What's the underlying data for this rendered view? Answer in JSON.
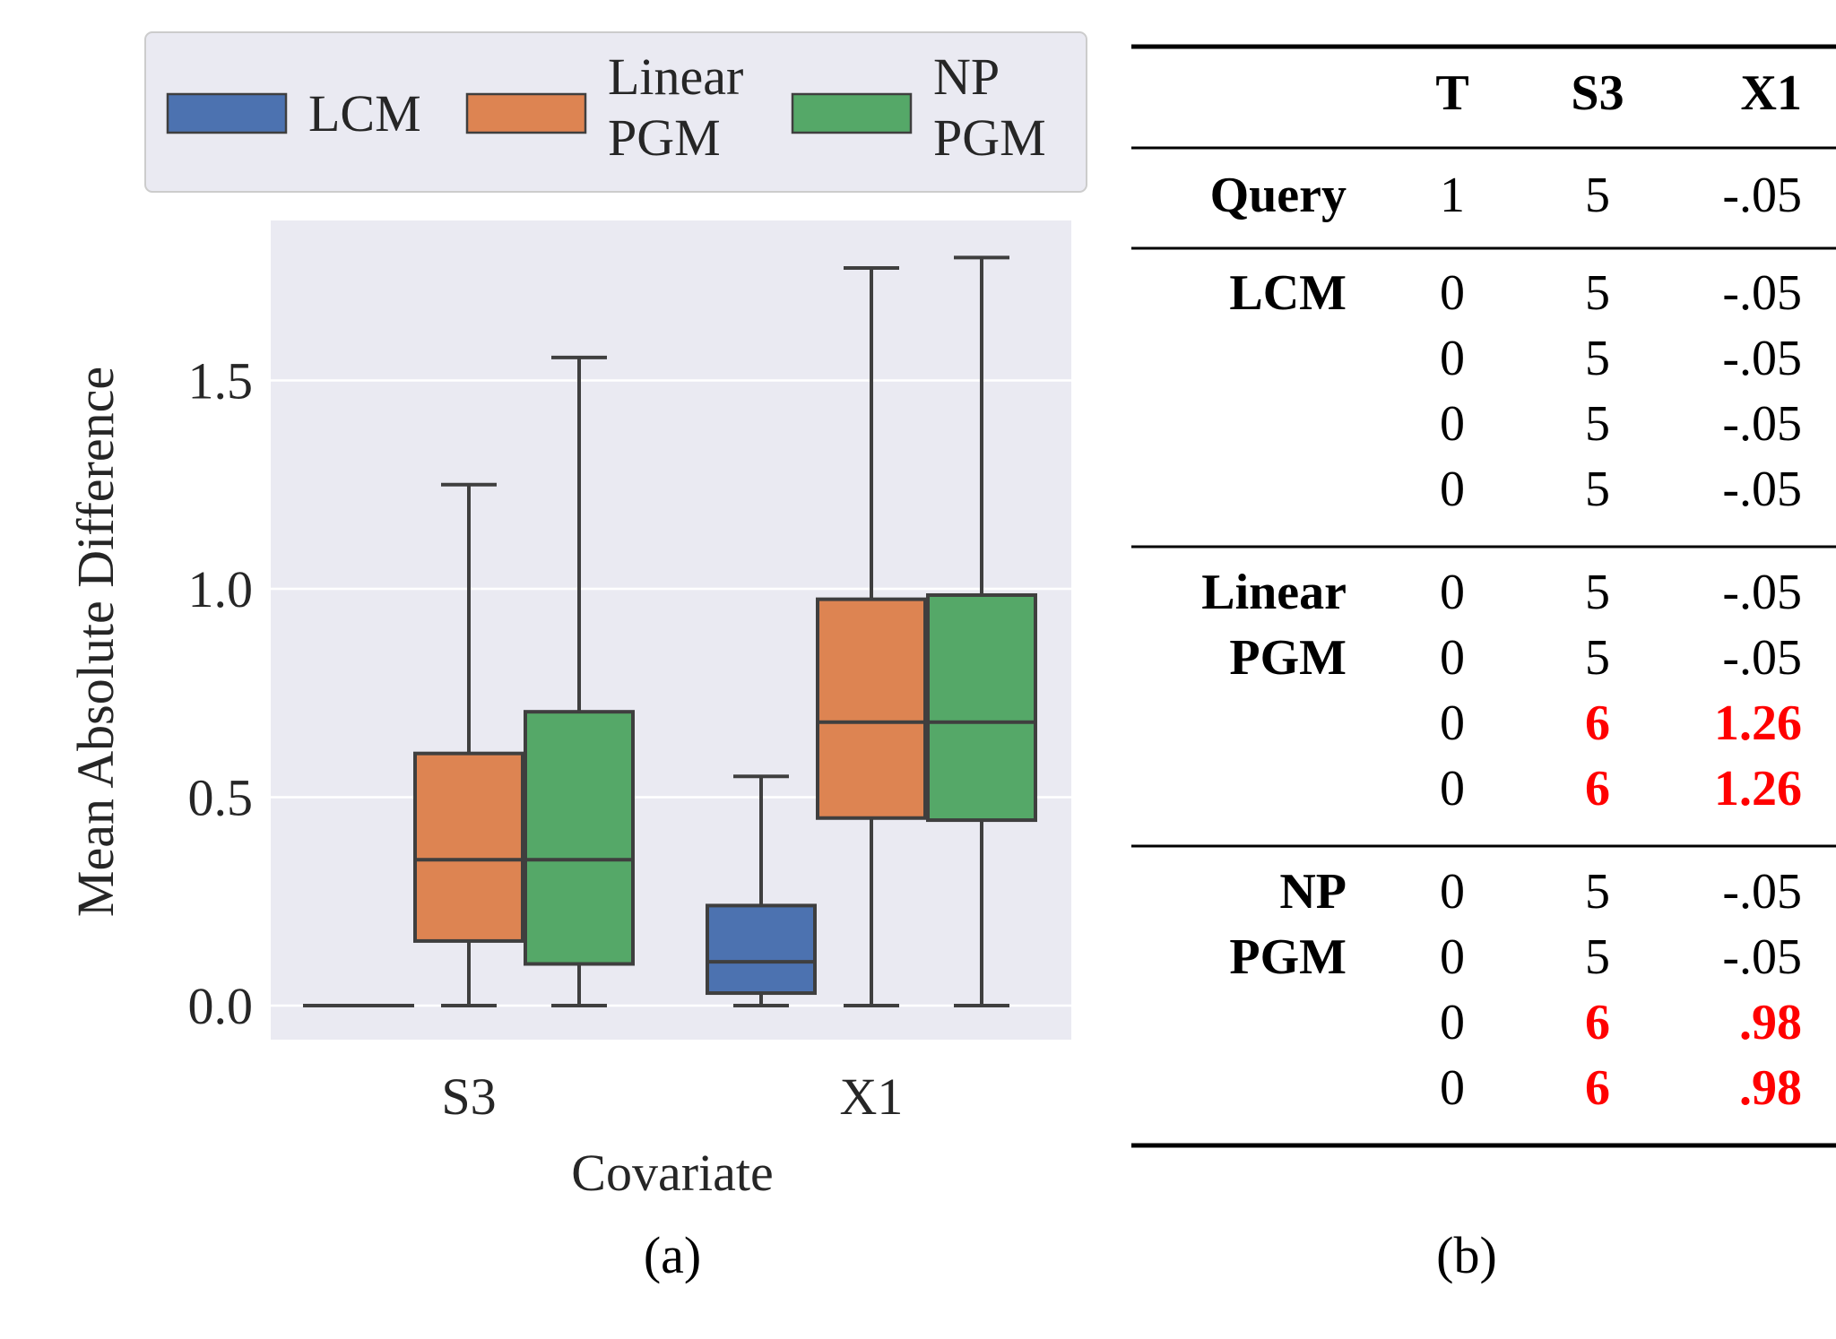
{
  "panel_a_label": "(a)",
  "panel_b_label": "(b)",
  "chart_data": {
    "type": "box",
    "xlabel": "Covariate",
    "ylabel": "Mean Absolute Difference",
    "categories": [
      "S3",
      "X1"
    ],
    "ylim": [
      -0.08,
      1.9
    ],
    "yticks": [
      0.0,
      0.5,
      1.0,
      1.5
    ],
    "ytick_labels": [
      "0.0",
      "0.5",
      "1.0",
      "1.5"
    ],
    "grid": true,
    "legend_position": "top",
    "series": [
      {
        "name": "LCM",
        "legend_lines": [
          "LCM"
        ],
        "color": "#4c72b0",
        "boxes": [
          {
            "category": "S3",
            "whislo": 0.0,
            "q1": 0.0,
            "med": 0.0,
            "q3": 0.0,
            "whishi": 0.0
          },
          {
            "category": "X1",
            "whislo": 0.0,
            "q1": 0.03,
            "med": 0.105,
            "q3": 0.24,
            "whishi": 0.55
          }
        ]
      },
      {
        "name": "Linear PGM",
        "legend_lines": [
          "Linear",
          "PGM"
        ],
        "color": "#dd8452",
        "boxes": [
          {
            "category": "S3",
            "whislo": 0.0,
            "q1": 0.155,
            "med": 0.35,
            "q3": 0.605,
            "whishi": 1.25
          },
          {
            "category": "X1",
            "whislo": 0.0,
            "q1": 0.45,
            "med": 0.68,
            "q3": 0.975,
            "whishi": 1.77
          }
        ]
      },
      {
        "name": "NP PGM",
        "legend_lines": [
          "NP",
          "PGM"
        ],
        "color": "#55a868",
        "boxes": [
          {
            "category": "S3",
            "whislo": 0.0,
            "q1": 0.1,
            "med": 0.35,
            "q3": 0.705,
            "whishi": 1.555
          },
          {
            "category": "X1",
            "whislo": 0.0,
            "q1": 0.445,
            "med": 0.68,
            "q3": 0.985,
            "whishi": 1.795
          }
        ]
      }
    ]
  },
  "table": {
    "headers": [
      "",
      "T",
      "S3",
      "X1"
    ],
    "highlight_color": "#ff0000",
    "query": {
      "label": "Query",
      "row": [
        "1",
        "5",
        "-.05"
      ]
    },
    "groups": [
      {
        "label_lines": [
          "LCM"
        ],
        "rows": [
          [
            {
              "v": "0",
              "hl": false
            },
            {
              "v": "5",
              "hl": false
            },
            {
              "v": "-.05",
              "hl": false
            }
          ],
          [
            {
              "v": "0",
              "hl": false
            },
            {
              "v": "5",
              "hl": false
            },
            {
              "v": "-.05",
              "hl": false
            }
          ],
          [
            {
              "v": "0",
              "hl": false
            },
            {
              "v": "5",
              "hl": false
            },
            {
              "v": "-.05",
              "hl": false
            }
          ],
          [
            {
              "v": "0",
              "hl": false
            },
            {
              "v": "5",
              "hl": false
            },
            {
              "v": "-.05",
              "hl": false
            }
          ]
        ]
      },
      {
        "label_lines": [
          "Linear",
          "PGM"
        ],
        "rows": [
          [
            {
              "v": "0",
              "hl": false
            },
            {
              "v": "5",
              "hl": false
            },
            {
              "v": "-.05",
              "hl": false
            }
          ],
          [
            {
              "v": "0",
              "hl": false
            },
            {
              "v": "5",
              "hl": false
            },
            {
              "v": "-.05",
              "hl": false
            }
          ],
          [
            {
              "v": "0",
              "hl": false
            },
            {
              "v": "6",
              "hl": true
            },
            {
              "v": "1.26",
              "hl": true
            }
          ],
          [
            {
              "v": "0",
              "hl": false
            },
            {
              "v": "6",
              "hl": true
            },
            {
              "v": "1.26",
              "hl": true
            }
          ]
        ]
      },
      {
        "label_lines": [
          "NP",
          "PGM"
        ],
        "rows": [
          [
            {
              "v": "0",
              "hl": false
            },
            {
              "v": "5",
              "hl": false
            },
            {
              "v": "-.05",
              "hl": false
            }
          ],
          [
            {
              "v": "0",
              "hl": false
            },
            {
              "v": "5",
              "hl": false
            },
            {
              "v": "-.05",
              "hl": false
            }
          ],
          [
            {
              "v": "0",
              "hl": false
            },
            {
              "v": "6",
              "hl": true
            },
            {
              "v": ".98",
              "hl": true
            }
          ],
          [
            {
              "v": "0",
              "hl": false
            },
            {
              "v": "6",
              "hl": true
            },
            {
              "v": ".98",
              "hl": true
            }
          ]
        ]
      }
    ]
  }
}
